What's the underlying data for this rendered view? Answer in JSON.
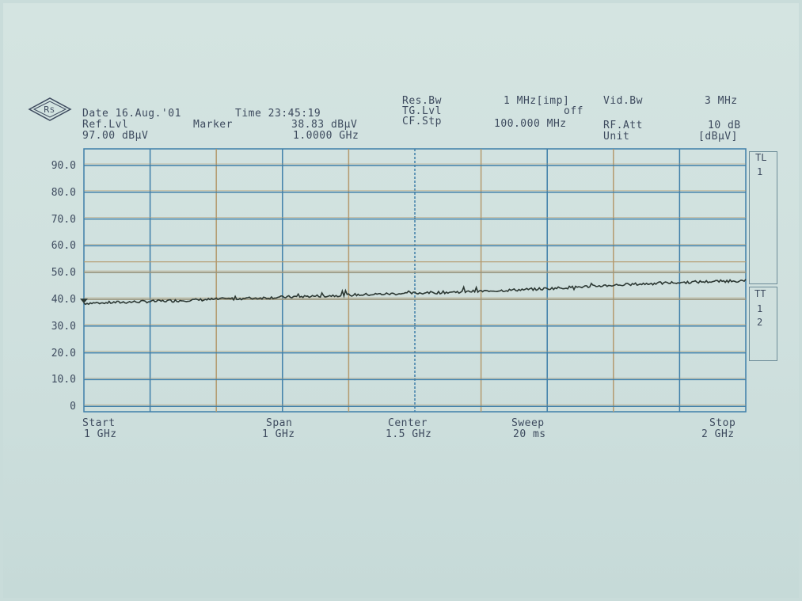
{
  "header": {
    "date_label": "Date 16.Aug.'01",
    "time_label": "Time 23:45:19",
    "ref_lvl_label": "Ref.Lvl",
    "ref_lvl_value": "97.00 dBµV",
    "marker_label": "Marker",
    "marker_level": "38.83 dBµV",
    "marker_freq": "1.0000 GHz",
    "res_bw_label": "Res.Bw",
    "res_bw_value": "1 MHz[imp]",
    "tg_lvl_label": "TG.Lvl",
    "tg_lvl_value": "off",
    "cf_stp_label": "CF.Stp",
    "cf_stp_value": "100.000 MHz",
    "vid_bw_label": "Vid.Bw",
    "vid_bw_value": "3 MHz",
    "rf_att_label": "RF.Att",
    "rf_att_value": "10 dB",
    "unit_label": "Unit",
    "unit_value": "[dBµV]"
  },
  "footer": {
    "start_label": "Start",
    "start_value": "1 GHz",
    "span_label": "Span",
    "span_value": "1 GHz",
    "center_label": "Center",
    "center_value": "1.5 GHz",
    "sweep_label": "Sweep",
    "sweep_value": "20 ms",
    "stop_label": "Stop",
    "stop_value": "2 GHz"
  },
  "side_panel": {
    "tl_label": "TL",
    "tl_1": "1",
    "tt_label": "TT",
    "tt_1": "1",
    "tt_2": "2"
  },
  "colors": {
    "grid_blue": "#3f7fa9",
    "grid_tan": "#b49a6e",
    "trace": "#2c3833",
    "text": "#3d4a5e"
  },
  "chart_data": {
    "type": "line",
    "title": "",
    "xlabel": "",
    "ylabel": "",
    "xlim": [
      1.0,
      2.0
    ],
    "ylim": [
      0,
      97
    ],
    "y_ticks": [
      "90.0",
      "80.0",
      "70.0",
      "60.0",
      "50.0",
      "40.0",
      "30.0",
      "20.0",
      "10.0",
      "0"
    ],
    "y_tick_values": [
      90,
      80,
      70,
      60,
      50,
      40,
      30,
      20,
      10,
      0
    ],
    "limit_lines": [
      54,
      50,
      40
    ],
    "grid": true,
    "series": [
      {
        "x": [
          1.0,
          1.1,
          1.2,
          1.3,
          1.4,
          1.5,
          1.6,
          1.7,
          1.8,
          1.9,
          2.0
        ],
        "values": [
          38.5,
          39.2,
          40.0,
          40.8,
          41.6,
          42.3,
          43.0,
          44.0,
          45.3,
          46.3,
          47.0
        ]
      }
    ]
  }
}
